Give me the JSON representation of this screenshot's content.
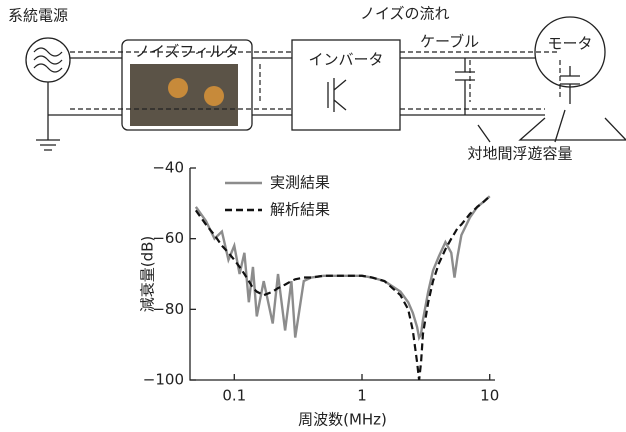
{
  "diagram": {
    "source": "系統電源",
    "filter": "ノイズフィルタ",
    "inverter": "インバータ",
    "noise_flow": "ノイズの流れ",
    "cable": "ケーブル",
    "motor": "モータ",
    "stray_capacitance": "対地間浮遊容量"
  },
  "chart_data": {
    "type": "line",
    "xlabel": "周波数(MHz)",
    "ylabel": "減衰量(dB)",
    "xscale": "log",
    "x": [
      0.05,
      0.06,
      0.07,
      0.08,
      0.09,
      0.1,
      0.11,
      0.12,
      0.13,
      0.14,
      0.15,
      0.17,
      0.2,
      0.22,
      0.25,
      0.28,
      0.3,
      0.35,
      0.4,
      0.5,
      0.6,
      0.7,
      0.8,
      1,
      1.2,
      1.5,
      2,
      2.3,
      2.5,
      2.7,
      2.8,
      2.9,
      3,
      3.3,
      3.6,
      4,
      4.5,
      5,
      5.3,
      5.6,
      6,
      7,
      8,
      9,
      10
    ],
    "series": [
      {
        "name": "実測結果",
        "color": "#8c8c8c",
        "dash": false,
        "values": [
          -51,
          -55,
          -60,
          -58,
          -66,
          -62,
          -70,
          -64,
          -78,
          -68,
          -82,
          -72,
          -84,
          -70,
          -86,
          -72,
          -88,
          -72,
          -71,
          -70.5,
          -70.5,
          -70.5,
          -70.5,
          -70.5,
          -71,
          -72,
          -75,
          -78,
          -81,
          -85,
          -88,
          -87,
          -83,
          -75,
          -69,
          -65,
          -61,
          -64,
          -71,
          -65,
          -59,
          -54,
          -51,
          -49.5,
          -48
        ]
      },
      {
        "name": "解析結果",
        "color": "#111111",
        "dash": true,
        "values": [
          -52,
          -56,
          -59,
          -62,
          -64,
          -66,
          -68,
          -70,
          -72,
          -74,
          -75,
          -76,
          -75,
          -74,
          -73,
          -72,
          -71.5,
          -71,
          -71,
          -70.5,
          -70.5,
          -70.5,
          -70.5,
          -70.5,
          -71,
          -72,
          -76,
          -80,
          -86,
          -95,
          -100,
          -95,
          -87,
          -78,
          -72,
          -67,
          -63,
          -60,
          -58.5,
          -57,
          -56,
          -53,
          -51,
          -49.5,
          -48
        ]
      }
    ],
    "xlim": [
      0.045,
      11
    ],
    "ylim": [
      -100,
      -40
    ],
    "xticks": [
      0.1,
      1,
      10
    ],
    "yticks": [
      {
        "value": -40,
        "label": "−40"
      },
      {
        "value": -60,
        "label": "−60"
      },
      {
        "value": -80,
        "label": "−80"
      },
      {
        "value": -100,
        "label": "−100"
      }
    ]
  }
}
